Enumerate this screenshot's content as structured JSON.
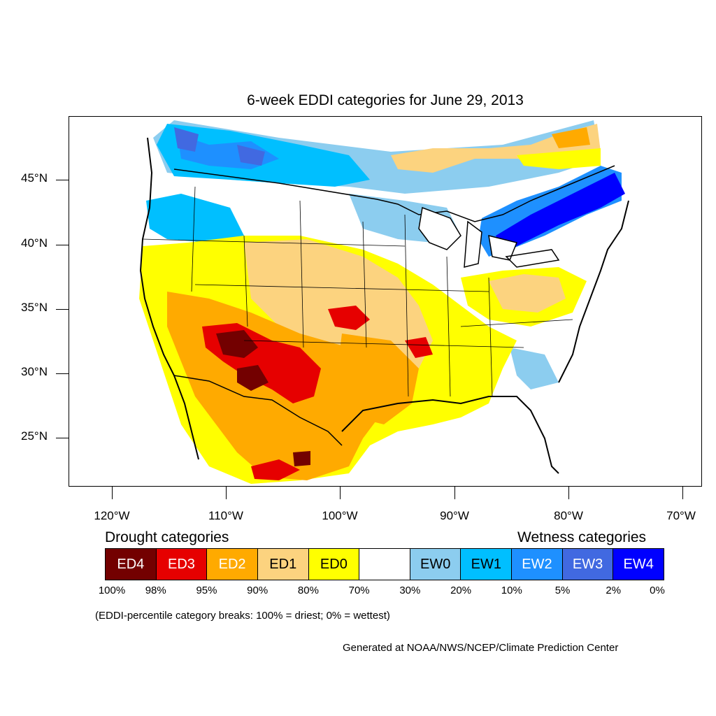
{
  "title": "6-week EDDI categories for June 29, 2013",
  "lat_labels": [
    "45°N",
    "40°N",
    "35°N",
    "30°N",
    "25°N"
  ],
  "lon_labels": [
    "120°W",
    "110°W",
    "100°W",
    "90°W",
    "80°W",
    "70°W"
  ],
  "legend": {
    "drought_heading": "Drought categories",
    "wetness_heading": "Wetness categories",
    "categories": [
      {
        "label": "ED4",
        "color": "#730000",
        "text_color": "#ffffff"
      },
      {
        "label": "ED3",
        "color": "#e60000",
        "text_color": "#ffffff"
      },
      {
        "label": "ED2",
        "color": "#ffaa00",
        "text_color": "#ffffff"
      },
      {
        "label": "ED1",
        "color": "#fcd37f",
        "text_color": "#000000"
      },
      {
        "label": "ED0",
        "color": "#ffff00",
        "text_color": "#000000"
      },
      {
        "label": "",
        "color": "#ffffff",
        "text_color": "#000000"
      },
      {
        "label": "EW0",
        "color": "#8ccdef",
        "text_color": "#000000"
      },
      {
        "label": "EW1",
        "color": "#00bfff",
        "text_color": "#000000"
      },
      {
        "label": "EW2",
        "color": "#1e90ff",
        "text_color": "#ffffff"
      },
      {
        "label": "EW3",
        "color": "#4169e1",
        "text_color": "#ffffff"
      },
      {
        "label": "EW4",
        "color": "#0000ff",
        "text_color": "#ffffff"
      }
    ],
    "percentile_breaks": [
      "100%",
      "98%",
      "95%",
      "90%",
      "80%",
      "70%",
      "30%",
      "20%",
      "10%",
      "5%",
      "2%",
      "0%"
    ]
  },
  "note": "(EDDI-percentile category breaks: 100% = driest; 0% = wettest)",
  "credit": "Generated at NOAA/NWS/NCEP/Climate Prediction Center"
}
